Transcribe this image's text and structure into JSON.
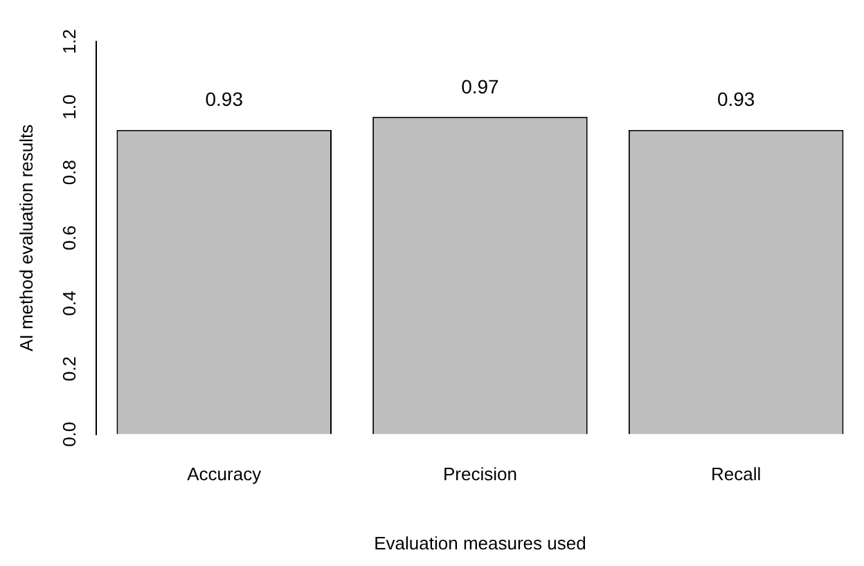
{
  "chart_data": {
    "type": "bar",
    "xlabel": "Evaluation measures used",
    "ylabel": "AI method evaluation results",
    "categories": [
      "Accuracy",
      "Precision",
      "Recall"
    ],
    "values": [
      0.93,
      0.97,
      0.93
    ],
    "color": "#bebebe",
    "ylim": [
      0,
      1.2
    ],
    "yticks": [
      {
        "value": 0,
        "label": "0.0"
      },
      {
        "value": 0.2,
        "label": "0.2"
      },
      {
        "value": 0.4,
        "label": "0.4"
      },
      {
        "value": 0.6,
        "label": "0.6"
      },
      {
        "value": 0.8,
        "label": "0.8"
      },
      {
        "value": 1,
        "label": "1.0"
      },
      {
        "value": 1.2,
        "label": "1.2"
      }
    ],
    "data_labels": true,
    "grid": false,
    "legend": false
  }
}
